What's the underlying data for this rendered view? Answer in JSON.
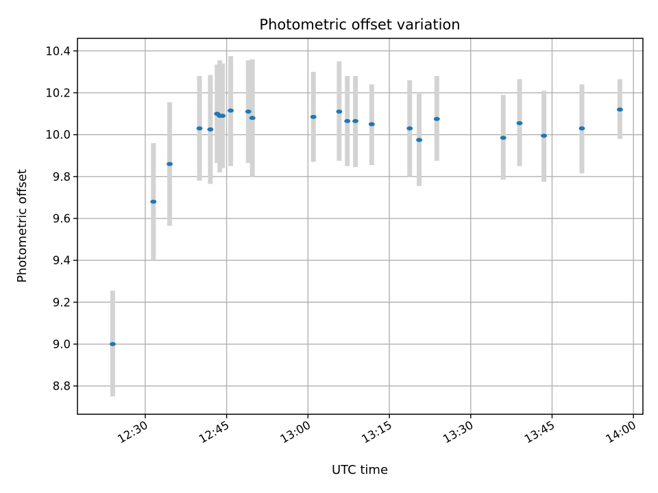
{
  "chart_data": {
    "type": "scatter",
    "title": "Photometric offset variation",
    "xlabel": "UTC time",
    "ylabel": "Photometric offset",
    "x_ticks": [
      "12:30",
      "12:45",
      "13:00",
      "13:15",
      "13:30",
      "13:45",
      "14:00"
    ],
    "x_tick_rotation_deg": 30,
    "xlim": [
      "12:17:30",
      "14:01:45"
    ],
    "ylim": [
      8.665,
      10.46
    ],
    "y_ticks": [
      "8.8",
      "9.0",
      "9.2",
      "9.4",
      "9.6",
      "9.8",
      "10.0",
      "10.2",
      "10.4"
    ],
    "grid": true,
    "marker_color": "#1f77b4",
    "errorbar_color": "#d3d3d3",
    "points": [
      {
        "x": "12:24:00",
        "y": 9.0,
        "ylo": 8.75,
        "yhi": 9.255
      },
      {
        "x": "12:31:30",
        "y": 9.68,
        "ylo": 9.4,
        "yhi": 9.96
      },
      {
        "x": "12:34:30",
        "y": 9.86,
        "ylo": 9.565,
        "yhi": 10.155
      },
      {
        "x": "12:40:00",
        "y": 10.03,
        "ylo": 9.78,
        "yhi": 10.28
      },
      {
        "x": "12:42:00",
        "y": 10.025,
        "ylo": 9.765,
        "yhi": 10.285
      },
      {
        "x": "12:43:15",
        "y": 10.1,
        "ylo": 9.865,
        "yhi": 10.335
      },
      {
        "x": "12:43:45",
        "y": 10.09,
        "ylo": 9.82,
        "yhi": 10.355
      },
      {
        "x": "12:44:15",
        "y": 10.09,
        "ylo": 9.84,
        "yhi": 10.34
      },
      {
        "x": "12:45:45",
        "y": 10.115,
        "ylo": 9.85,
        "yhi": 10.375
      },
      {
        "x": "12:49:00",
        "y": 10.11,
        "ylo": 9.865,
        "yhi": 10.355
      },
      {
        "x": "12:49:45",
        "y": 10.08,
        "ylo": 9.8,
        "yhi": 10.36
      },
      {
        "x": "13:01:00",
        "y": 10.085,
        "ylo": 9.87,
        "yhi": 10.3
      },
      {
        "x": "13:05:45",
        "y": 10.11,
        "ylo": 9.875,
        "yhi": 10.35
      },
      {
        "x": "13:07:15",
        "y": 10.065,
        "ylo": 9.85,
        "yhi": 10.28
      },
      {
        "x": "13:08:45",
        "y": 10.065,
        "ylo": 9.845,
        "yhi": 10.28
      },
      {
        "x": "13:11:45",
        "y": 10.05,
        "ylo": 9.855,
        "yhi": 10.24
      },
      {
        "x": "13:18:45",
        "y": 10.03,
        "ylo": 9.8,
        "yhi": 10.26
      },
      {
        "x": "13:20:30",
        "y": 9.975,
        "ylo": 9.755,
        "yhi": 10.195
      },
      {
        "x": "13:23:45",
        "y": 10.075,
        "ylo": 9.875,
        "yhi": 10.28
      },
      {
        "x": "13:36:00",
        "y": 9.985,
        "ylo": 9.785,
        "yhi": 10.19
      },
      {
        "x": "13:39:00",
        "y": 10.055,
        "ylo": 9.85,
        "yhi": 10.265
      },
      {
        "x": "13:43:30",
        "y": 9.995,
        "ylo": 9.775,
        "yhi": 10.21
      },
      {
        "x": "13:50:30",
        "y": 10.03,
        "ylo": 9.815,
        "yhi": 10.24
      },
      {
        "x": "13:57:30",
        "y": 10.12,
        "ylo": 9.98,
        "yhi": 10.265
      }
    ]
  }
}
